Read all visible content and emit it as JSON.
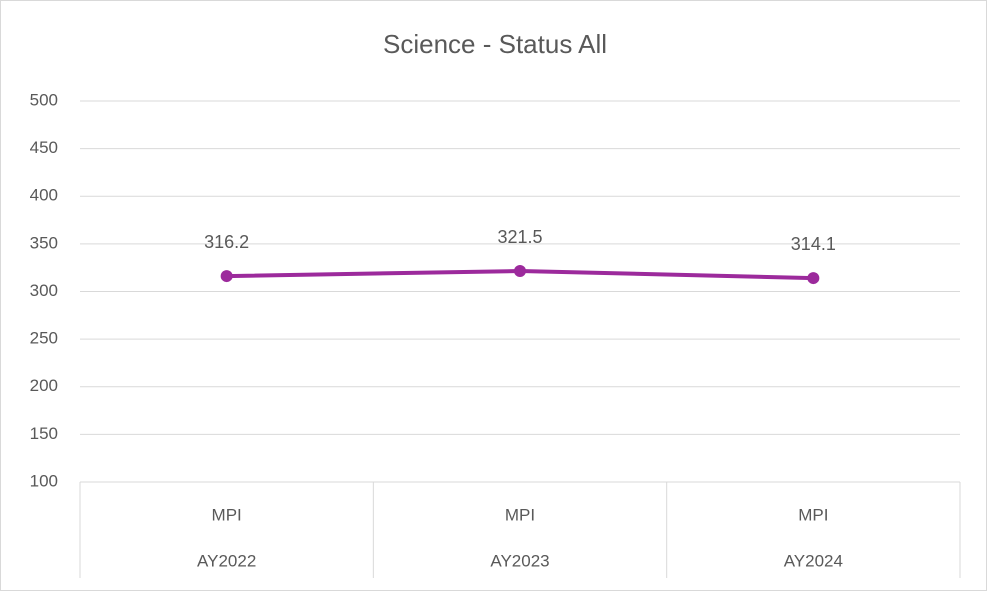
{
  "chart_data": {
    "type": "line",
    "title": "Science - Status All",
    "categories": [
      "MPI",
      "MPI",
      "MPI"
    ],
    "category_groups": [
      "AY2022",
      "AY2023",
      "AY2024"
    ],
    "values": [
      316.2,
      321.5,
      314.1
    ],
    "color": "#9c2a9c",
    "ylim": [
      100,
      500
    ],
    "yticks": [
      100,
      150,
      200,
      250,
      300,
      350,
      400,
      450,
      500
    ],
    "grid": true
  }
}
